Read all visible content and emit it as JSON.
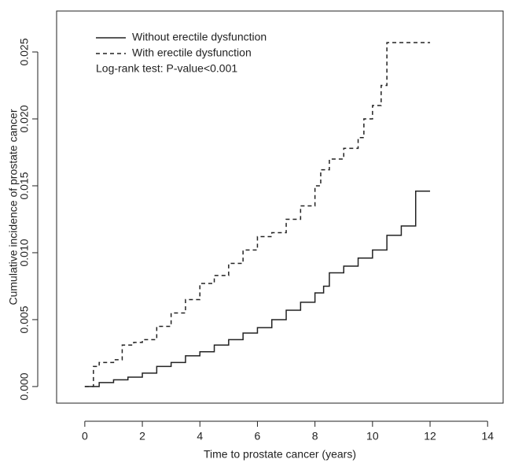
{
  "chart_data": {
    "type": "line",
    "step": true,
    "xlabel": "Time to prostate cancer (years)",
    "ylabel": "Cumulative incidence of prostate cancer",
    "annotation": "Log-rank test: P-value<0.001",
    "xlim": [
      -0.98,
      14.54
    ],
    "ylim": [
      -0.00124,
      0.02806
    ],
    "xticks": [
      0,
      2,
      4,
      6,
      8,
      10,
      12,
      14
    ],
    "yticks": [
      {
        "value": 0,
        "label": "0.000"
      },
      {
        "value": 0.005,
        "label": "0.005"
      },
      {
        "value": 0.01,
        "label": "0.010"
      },
      {
        "value": 0.015,
        "label": "0.015"
      },
      {
        "value": 0.02,
        "label": "0.020"
      },
      {
        "value": 0.025,
        "label": "0.025"
      }
    ],
    "series": [
      {
        "name": "Without erectile dysfunction",
        "color": "#222222",
        "dash": false,
        "x": [
          0,
          0.5,
          1,
          1.5,
          2,
          2.5,
          3,
          3.5,
          4,
          4.5,
          5,
          5.5,
          6,
          6.5,
          7,
          7.5,
          8,
          8.3,
          8.5,
          9,
          9.5,
          10,
          10.5,
          11,
          11.5,
          12
        ],
        "values": [
          0,
          0.0003,
          0.0005,
          0.0007,
          0.001,
          0.0015,
          0.0018,
          0.0023,
          0.0026,
          0.0031,
          0.0035,
          0.004,
          0.0044,
          0.005,
          0.0057,
          0.0063,
          0.007,
          0.0075,
          0.0085,
          0.009,
          0.0096,
          0.0102,
          0.0113,
          0.012,
          0.0146,
          0.0146
        ]
      },
      {
        "name": "With erectile dysfunction",
        "color": "#222222",
        "dash": true,
        "x": [
          0,
          0.3,
          0.5,
          1,
          1.3,
          1.7,
          2,
          2.5,
          3,
          3.5,
          4,
          4.5,
          5,
          5.5,
          6,
          6.5,
          7,
          7.5,
          8,
          8.2,
          8.5,
          9,
          9.5,
          9.7,
          10,
          10.3,
          10.5,
          12
        ],
        "values": [
          0,
          0.0015,
          0.0018,
          0.002,
          0.0031,
          0.0033,
          0.0035,
          0.0045,
          0.0055,
          0.0065,
          0.0077,
          0.0083,
          0.0092,
          0.0102,
          0.0112,
          0.0115,
          0.0125,
          0.0135,
          0.015,
          0.0162,
          0.017,
          0.0178,
          0.0186,
          0.02,
          0.021,
          0.0225,
          0.0257,
          0.0257
        ]
      }
    ]
  }
}
